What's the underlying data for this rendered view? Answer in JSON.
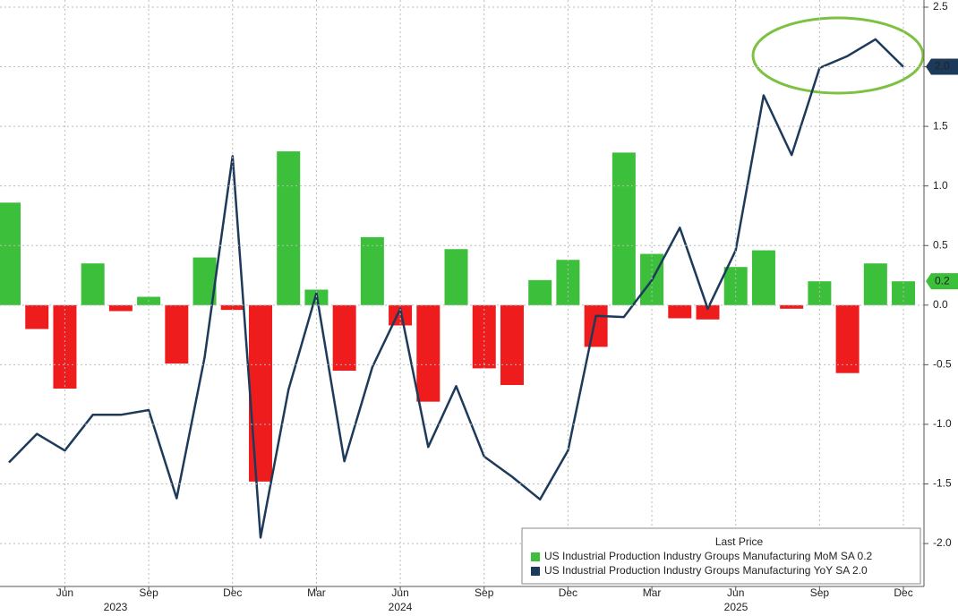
{
  "chart_data": {
    "type": "bar-line",
    "categories": [
      null,
      null,
      "Jun",
      null,
      null,
      "Sep",
      null,
      null,
      "Dec",
      null,
      null,
      "Mar",
      null,
      null,
      "Jun",
      null,
      null,
      "Sep",
      null,
      null,
      "Dec",
      null,
      null,
      "Mar",
      null,
      null,
      "Jun",
      null,
      null,
      "Sep",
      null,
      null,
      "Dec"
    ],
    "years": [
      "2023",
      "2024",
      "2025"
    ],
    "series": [
      {
        "name": "US Industrial Production Industry Groups Manufacturing MoM SA",
        "type": "bar",
        "color": "#3cbf3a",
        "negative_color": "#ee1c1c",
        "last_label": "0.2",
        "values": [
          0.86,
          -0.2,
          -0.7,
          0.35,
          -0.05,
          0.07,
          -0.49,
          0.4,
          -0.04,
          -1.48,
          1.29,
          0.13,
          -0.55,
          0.57,
          -0.17,
          -0.81,
          0.47,
          -0.53,
          -0.67,
          0.21,
          0.38,
          -0.35,
          1.28,
          0.43,
          -0.11,
          -0.12,
          0.32,
          0.46,
          -0.03,
          0.2,
          -0.57,
          0.35,
          0.2
        ]
      },
      {
        "name": "US Industrial Production Industry Groups Manufacturing YoY SA",
        "type": "line",
        "color": "#1d3a5a",
        "last_label": "2.0",
        "values": [
          -1.32,
          -1.08,
          -1.22,
          -0.92,
          -0.92,
          -0.88,
          -1.62,
          -0.44,
          1.25,
          -1.95,
          -0.71,
          0.1,
          -1.31,
          -0.52,
          -0.03,
          -1.19,
          -0.68,
          -1.27,
          -1.44,
          -1.63,
          -1.22,
          -0.09,
          -0.1,
          0.21,
          0.65,
          -0.03,
          0.46,
          1.76,
          1.26,
          1.99,
          2.09,
          2.23,
          2.0
        ]
      }
    ],
    "legend_title": "Last Price",
    "ylim": [
      -2.36,
      2.56
    ],
    "yticks": [
      {
        "value": -2,
        "label": "-2.0"
      },
      -1.5,
      {
        "value": -1,
        "label": "-1.0"
      },
      -0.5,
      {
        "value": 0,
        "label": "0.0"
      },
      0.5,
      {
        "value": 1,
        "label": "1.0"
      },
      1.5,
      {
        "value": 2,
        "label": "2.0"
      },
      2.5
    ],
    "grid": true,
    "legend_position": "lower right"
  }
}
